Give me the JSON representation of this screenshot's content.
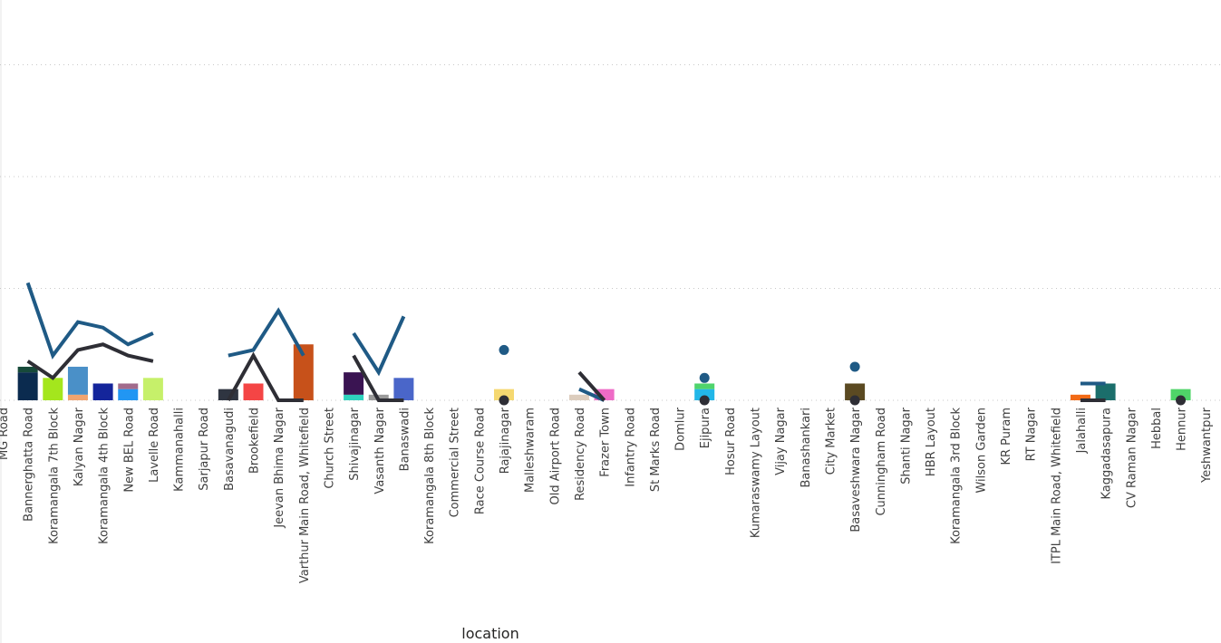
{
  "chart_data": {
    "type": "bar",
    "title": "",
    "xlabel": "location",
    "ylabel": "",
    "ylim": [
      0,
      10
    ],
    "grid": true,
    "legend": "none",
    "categories": [
      "MG Road",
      "Bannerghatta Road",
      "Koramangala 7th Block",
      "Kalyan Nagar",
      "Koramangala 4th Block",
      "New BEL Road",
      "Lavelle Road",
      "Kammanahalli",
      "Sarjapur Road",
      "Basavanagudi",
      "Brookefield",
      "Jeevan Bhima Nagar",
      "Varthur Main Road, Whitefield",
      "Church Street",
      "Shivajinagar",
      "Vasanth Nagar",
      "Banaswadi",
      "Koramangala 8th Block",
      "Commercial Street",
      "Race Course Road",
      "Rajajinagar",
      "Malleshwaram",
      "Old Airport Road",
      "Residency Road",
      "Frazer Town",
      "Infantry Road",
      "St Marks Road",
      "Domlur",
      "Ejipura",
      "Hosur Road",
      "Kumaraswamy Layout",
      "Vijay Nagar",
      "Banashankari",
      "City Market",
      "Basaveshwara Nagar",
      "Cunningham Road",
      "Shanti Nagar",
      "HBR Layout",
      "Koramangala 3rd Block",
      "Wilson Garden",
      "KR Puram",
      "RT Nagar",
      "ITPL Main Road, Whitefield",
      "Jalahalli",
      "Kaggadasapura",
      "CV Raman Nagar",
      "Hebbal",
      "Hennur",
      "Yeshwantpur"
    ],
    "bars": [
      {
        "index": 1,
        "segments": [
          {
            "value": 2.5,
            "color": "#0B2B4F"
          },
          {
            "value": 0.5,
            "color": "#174A3A"
          }
        ]
      },
      {
        "index": 2,
        "segments": [
          {
            "value": 2.0,
            "color": "#A4E61D"
          }
        ]
      },
      {
        "index": 3,
        "segments": [
          {
            "value": 0.5,
            "color": "#F2A46E"
          },
          {
            "value": 2.5,
            "color": "#4A90C8"
          }
        ]
      },
      {
        "index": 4,
        "segments": [
          {
            "value": 1.5,
            "color": "#14259B"
          }
        ]
      },
      {
        "index": 5,
        "segments": [
          {
            "value": 1.0,
            "color": "#2196F3"
          },
          {
            "value": 0.5,
            "color": "#A26B8C"
          }
        ]
      },
      {
        "index": 6,
        "segments": [
          {
            "value": 2.0,
            "color": "#C6F06A"
          }
        ]
      },
      {
        "index": 9,
        "segments": [
          {
            "value": 1.0,
            "color": "#2F3541"
          }
        ]
      },
      {
        "index": 10,
        "segments": [
          {
            "value": 1.5,
            "color": "#F44545"
          }
        ]
      },
      {
        "index": 12,
        "segments": [
          {
            "value": 5.0,
            "color": "#C7511A"
          }
        ]
      },
      {
        "index": 14,
        "segments": [
          {
            "value": 0.5,
            "color": "#2FD2BE"
          },
          {
            "value": 2.0,
            "color": "#3A1452"
          }
        ]
      },
      {
        "index": 15,
        "segments": [
          {
            "value": 0.5,
            "color": "#9A9A9A"
          }
        ]
      },
      {
        "index": 16,
        "segments": [
          {
            "value": 2.0,
            "color": "#4A66C9"
          }
        ]
      },
      {
        "index": 20,
        "segments": [
          {
            "value": 1.0,
            "color": "#F5D870"
          }
        ]
      },
      {
        "index": 23,
        "segments": [
          {
            "value": 0.5,
            "color": "#DCCDBE"
          }
        ]
      },
      {
        "index": 24,
        "segments": [
          {
            "value": 1.0,
            "color": "#EE6BC6"
          }
        ]
      },
      {
        "index": 28,
        "segments": [
          {
            "value": 1.0,
            "color": "#22B7E8"
          },
          {
            "value": 0.5,
            "color": "#4FD46C"
          }
        ]
      },
      {
        "index": 34,
        "segments": [
          {
            "value": 1.5,
            "color": "#5B4A22"
          }
        ]
      },
      {
        "index": 43,
        "segments": [
          {
            "value": 0.5,
            "color": "#F26A16"
          }
        ]
      },
      {
        "index": 44,
        "segments": [
          {
            "value": 1.5,
            "color": "#1B6E6B"
          }
        ]
      },
      {
        "index": 47,
        "segments": [
          {
            "value": 1.0,
            "color": "#4FD468"
          }
        ]
      }
    ],
    "series": [
      {
        "color": "#1F5A85",
        "values": [
          null,
          10.5,
          4.0,
          7.0,
          6.5,
          5.0,
          6.0,
          null,
          null,
          4.0,
          4.5,
          8.0,
          4.0,
          null,
          6.0,
          2.5,
          7.5,
          null,
          null,
          null,
          4.5,
          null,
          null,
          1.0,
          0.0,
          null,
          null,
          null,
          2.0,
          null,
          null,
          null,
          null,
          null,
          3.0,
          null,
          null,
          null,
          null,
          null,
          null,
          null,
          null,
          1.5,
          1.5,
          null,
          null,
          null,
          null
        ]
      },
      {
        "color": "#2E2E35",
        "values": [
          null,
          3.5,
          2.0,
          4.5,
          5.0,
          4.0,
          3.5,
          null,
          null,
          0.0,
          4.0,
          0.0,
          0.0,
          null,
          4.0,
          0.0,
          0.0,
          null,
          null,
          null,
          0.0,
          null,
          null,
          2.5,
          0.0,
          null,
          null,
          null,
          0.0,
          null,
          null,
          null,
          null,
          null,
          0.0,
          null,
          null,
          null,
          null,
          null,
          null,
          null,
          null,
          0.0,
          0.0,
          null,
          null,
          0.0,
          null
        ]
      }
    ]
  }
}
